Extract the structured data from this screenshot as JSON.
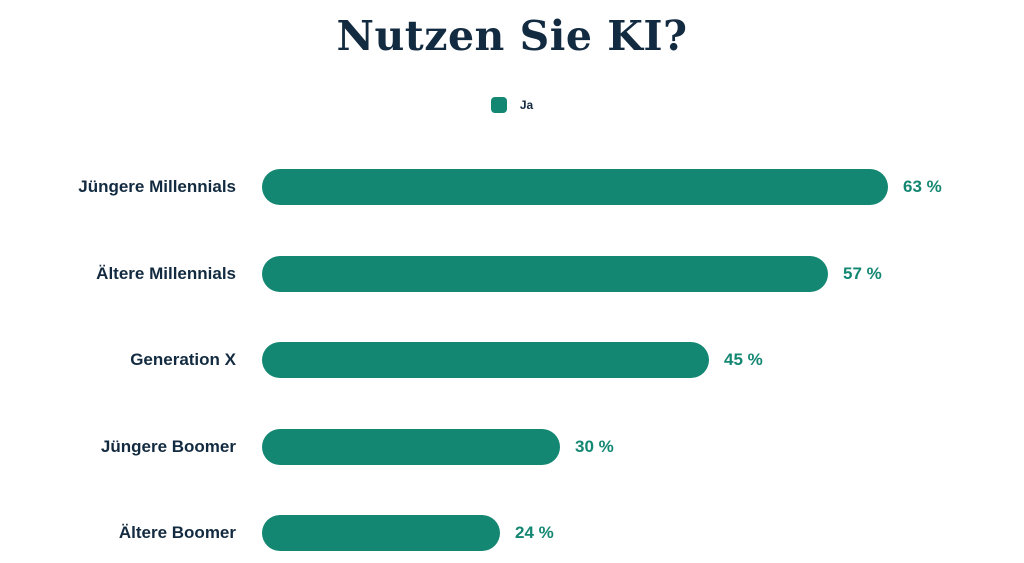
{
  "title": "Nutzen Sie KI?",
  "legend": {
    "items": [
      {
        "label": "Ja",
        "color": "#148772"
      }
    ]
  },
  "colors": {
    "bar": "#148772",
    "heading": "#132b40",
    "category_text": "#132b40",
    "value_text": "#148772",
    "background": "#ffffff"
  },
  "chart_data": {
    "type": "bar",
    "orientation": "horizontal",
    "title": "Nutzen Sie KI?",
    "categories": [
      "Jüngere Millennials",
      "Ältere Millennials",
      "Generation X",
      "Jüngere Boomer",
      "Ältere Boomer"
    ],
    "series": [
      {
        "name": "Ja",
        "values": [
          63,
          57,
          45,
          30,
          24
        ]
      }
    ],
    "value_labels": [
      "63 %",
      "57 %",
      "45 %",
      "30 %",
      "24 %"
    ],
    "value_suffix": " %",
    "xlim": [
      0,
      63
    ],
    "grid": false,
    "legend_position": "top",
    "xlabel": "",
    "ylabel": ""
  }
}
